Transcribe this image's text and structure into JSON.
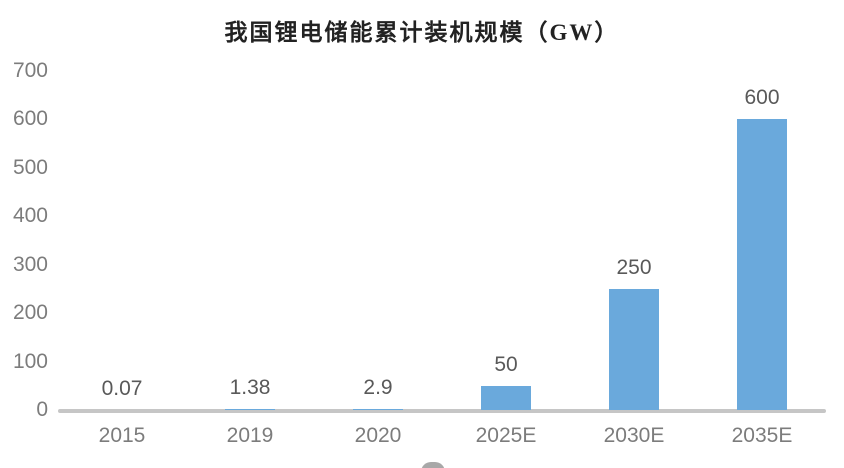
{
  "chart_data": {
    "type": "bar",
    "title": "我国锂电储能累计装机规模（GW）",
    "categories": [
      "2015",
      "2019",
      "2020",
      "2025E",
      "2030E",
      "2035E"
    ],
    "values": [
      0.07,
      1.38,
      2.9,
      50,
      250,
      600
    ],
    "value_labels": [
      "0.07",
      "1.38",
      "2.9",
      "50",
      "250",
      "600"
    ],
    "ylabel": "",
    "xlabel": "",
    "ylim": [
      0,
      700
    ],
    "yticks": [
      0,
      100,
      200,
      300,
      400,
      500,
      600,
      700
    ],
    "grid": false,
    "legend": false,
    "colors": {
      "bar": "#6aa9dc",
      "axis_line": "#c6c6c6",
      "tick_label": "#7c7c7c",
      "data_label": "#595959",
      "title": "#222222",
      "background": "#ffffff"
    }
  }
}
